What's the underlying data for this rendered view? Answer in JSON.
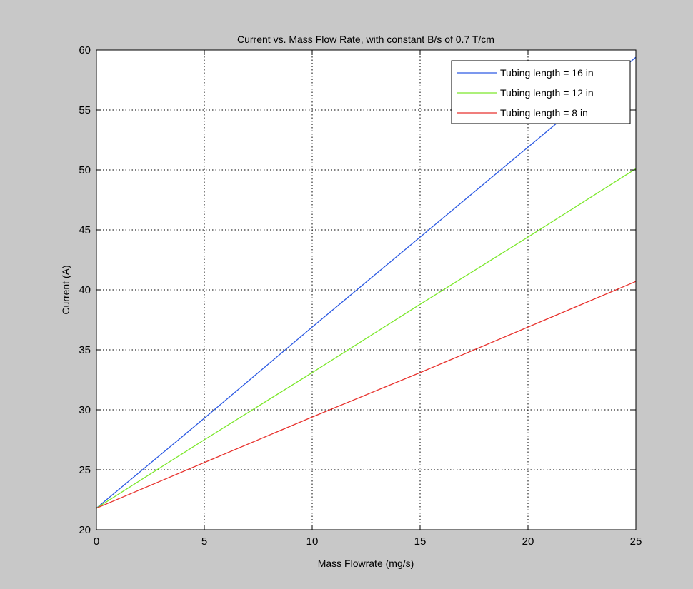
{
  "colors": {
    "figure_background": "#c8c8c8",
    "axes_background": "#ffffff",
    "grid": "#000000",
    "series": [
      "#2d5be3",
      "#7ce82b",
      "#e8322d"
    ]
  },
  "chart_data": {
    "type": "line",
    "title": "Current vs. Mass Flow Rate, with constant B/s of 0.7 T/cm",
    "xlabel": "Mass Flowrate (mg/s)",
    "ylabel": "Current (A)",
    "xlim": [
      0,
      25
    ],
    "ylim": [
      20,
      60
    ],
    "xticks": [
      0,
      5,
      10,
      15,
      20,
      25
    ],
    "yticks": [
      20,
      25,
      30,
      35,
      40,
      45,
      50,
      55,
      60
    ],
    "xtick_labels": [
      "0",
      "5",
      "10",
      "15",
      "20",
      "25"
    ],
    "ytick_labels": [
      "20",
      "25",
      "30",
      "35",
      "40",
      "45",
      "50",
      "55",
      "60"
    ],
    "grid": true,
    "grid_style": "dotted",
    "legend_position": "top-right",
    "x": [
      0,
      5,
      10,
      15,
      20,
      25
    ],
    "series": [
      {
        "name": "Tubing length = 16 in",
        "color": "#2d5be3",
        "values": [
          21.8,
          29.3,
          36.9,
          44.4,
          51.9,
          59.4
        ]
      },
      {
        "name": "Tubing length = 12 in",
        "color": "#7ce82b",
        "values": [
          21.8,
          27.5,
          33.1,
          38.8,
          44.4,
          50.1
        ]
      },
      {
        "name": "Tubing length = 8 in",
        "color": "#e8322d",
        "values": [
          21.8,
          25.6,
          29.4,
          33.1,
          36.9,
          40.7
        ]
      }
    ]
  }
}
